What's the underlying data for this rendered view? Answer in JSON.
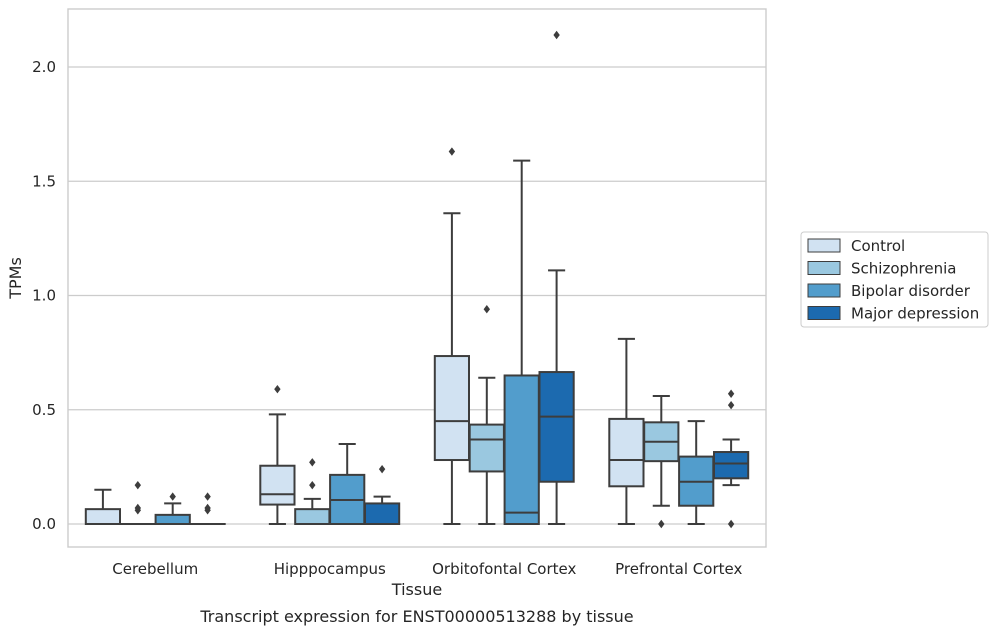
{
  "caption": "Transcript expression for ENST00000513288 by tissue",
  "colors": {
    "series": [
      "#d1e2f2",
      "#9ac8e0",
      "#529dcc",
      "#1c6aaf"
    ],
    "edge": "#3d3d3d",
    "grid": "#cccccc",
    "frame": "#cccccc"
  },
  "chart_data": {
    "type": "box",
    "title": "",
    "xlabel": "Tissue",
    "ylabel": "TPMs",
    "ylim": [
      -0.1,
      2.25
    ],
    "yticks": [
      0.0,
      0.5,
      1.0,
      1.5,
      2.0
    ],
    "ytick_labels": [
      "0.0",
      "0.5",
      "1.0",
      "1.5",
      "2.0"
    ],
    "grid": "horizontal",
    "legend_position": "right",
    "categories": [
      "Cerebellum",
      "Hipppocampus",
      "Orbitofontal Cortex",
      "Prefrontal Cortex"
    ],
    "series": [
      {
        "name": "Control",
        "boxes": [
          {
            "whisker_low": 0.0,
            "q1": 0.0,
            "median": 0.0,
            "q3": 0.065,
            "whisker_high": 0.15,
            "outliers": []
          },
          {
            "whisker_low": 0.0,
            "q1": 0.085,
            "median": 0.13,
            "q3": 0.255,
            "whisker_high": 0.48,
            "outliers": [
              0.59
            ]
          },
          {
            "whisker_low": 0.0,
            "q1": 0.28,
            "median": 0.45,
            "q3": 0.735,
            "whisker_high": 1.36,
            "outliers": [
              1.63
            ]
          },
          {
            "whisker_low": 0.0,
            "q1": 0.165,
            "median": 0.28,
            "q3": 0.46,
            "whisker_high": 0.81,
            "outliers": []
          }
        ]
      },
      {
        "name": "Schizophrenia",
        "boxes": [
          {
            "whisker_low": 0.0,
            "q1": 0.0,
            "median": 0.0,
            "q3": 0.0,
            "whisker_high": 0.0,
            "outliers": [
              0.06,
              0.07,
              0.17
            ]
          },
          {
            "whisker_low": 0.0,
            "q1": 0.0,
            "median": 0.0,
            "q3": 0.065,
            "whisker_high": 0.11,
            "outliers": [
              0.17,
              0.27
            ]
          },
          {
            "whisker_low": 0.0,
            "q1": 0.23,
            "median": 0.37,
            "q3": 0.435,
            "whisker_high": 0.64,
            "outliers": [
              0.94
            ]
          },
          {
            "whisker_low": 0.08,
            "q1": 0.275,
            "median": 0.36,
            "q3": 0.445,
            "whisker_high": 0.56,
            "outliers": [
              0.0
            ]
          }
        ]
      },
      {
        "name": "Bipolar disorder",
        "boxes": [
          {
            "whisker_low": 0.0,
            "q1": 0.0,
            "median": 0.0,
            "q3": 0.04,
            "whisker_high": 0.09,
            "outliers": [
              0.12
            ]
          },
          {
            "whisker_low": 0.0,
            "q1": 0.0,
            "median": 0.105,
            "q3": 0.215,
            "whisker_high": 0.35,
            "outliers": []
          },
          {
            "whisker_low": 0.0,
            "q1": 0.0,
            "median": 0.05,
            "q3": 0.65,
            "whisker_high": 1.59,
            "outliers": []
          },
          {
            "whisker_low": 0.0,
            "q1": 0.08,
            "median": 0.185,
            "q3": 0.295,
            "whisker_high": 0.45,
            "outliers": []
          }
        ]
      },
      {
        "name": "Major depression",
        "boxes": [
          {
            "whisker_low": 0.0,
            "q1": 0.0,
            "median": 0.0,
            "q3": 0.0,
            "whisker_high": 0.0,
            "outliers": [
              0.06,
              0.07,
              0.12
            ]
          },
          {
            "whisker_low": 0.0,
            "q1": 0.0,
            "median": 0.0,
            "q3": 0.09,
            "whisker_high": 0.12,
            "outliers": [
              0.24
            ]
          },
          {
            "whisker_low": 0.0,
            "q1": 0.185,
            "median": 0.47,
            "q3": 0.665,
            "whisker_high": 1.11,
            "outliers": [
              2.14
            ]
          },
          {
            "whisker_low": 0.17,
            "q1": 0.2,
            "median": 0.265,
            "q3": 0.315,
            "whisker_high": 0.37,
            "outliers": [
              0.0,
              0.52,
              0.57
            ]
          }
        ]
      }
    ]
  }
}
